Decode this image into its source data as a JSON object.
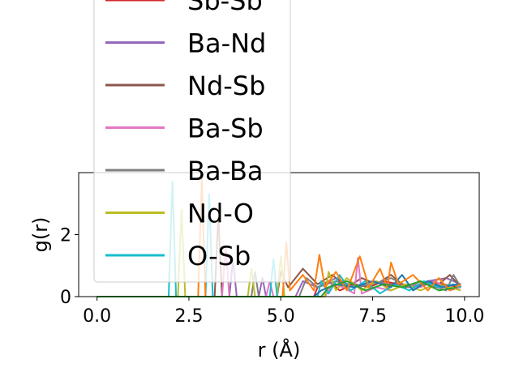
{
  "chart_data": {
    "type": "line",
    "title": "",
    "xlabel": "r (Å)",
    "ylabel": "g(r)",
    "xlim": [
      -0.5,
      10.4
    ],
    "ylim": [
      0,
      4.0
    ],
    "xticks": [
      {
        "value": 0.0,
        "label": "0.0"
      },
      {
        "value": 2.5,
        "label": "2.5"
      },
      {
        "value": 5.0,
        "label": "5.0"
      },
      {
        "value": 7.5,
        "label": "7.5"
      },
      {
        "value": 10.0,
        "label": "10.0"
      }
    ],
    "yticks": [
      {
        "value": 0,
        "label": "0"
      },
      {
        "value": 2,
        "label": "2"
      }
    ],
    "grid": false,
    "legend_position": "upper-left, overflowing above plot",
    "series": [
      {
        "name": "Sb-Sb",
        "color": "#d62728",
        "points": [
          [
            0,
            0
          ],
          [
            5.9,
            0
          ],
          [
            6.0,
            0.3
          ],
          [
            6.3,
            0.5
          ],
          [
            6.6,
            0.2
          ],
          [
            7.0,
            0.4
          ],
          [
            7.4,
            0.3
          ],
          [
            7.8,
            0.5
          ],
          [
            8.2,
            0.4
          ],
          [
            8.6,
            0.3
          ],
          [
            9.0,
            0.5
          ],
          [
            9.4,
            0.4
          ],
          [
            9.9,
            0.3
          ]
        ]
      },
      {
        "name": "Ba-Nd",
        "color": "#9467bd",
        "points": [
          [
            0,
            0
          ],
          [
            3.6,
            0
          ],
          [
            3.7,
            1.2
          ],
          [
            3.8,
            0
          ],
          [
            4.4,
            0
          ],
          [
            4.5,
            0.6
          ],
          [
            4.6,
            0
          ],
          [
            5.4,
            0
          ],
          [
            5.6,
            0.5
          ],
          [
            6.0,
            0.3
          ],
          [
            6.5,
            0.6
          ],
          [
            7.0,
            0.3
          ],
          [
            7.5,
            0.5
          ],
          [
            8.0,
            0.4
          ],
          [
            8.5,
            0.3
          ],
          [
            9.0,
            0.5
          ],
          [
            9.5,
            0.6
          ],
          [
            9.9,
            0.4
          ]
        ]
      },
      {
        "name": "Nd-Sb",
        "color": "#8c564b",
        "points": [
          [
            0,
            0
          ],
          [
            3.2,
            0
          ],
          [
            3.3,
            2.6
          ],
          [
            3.4,
            0
          ],
          [
            4.9,
            0
          ],
          [
            5.0,
            0.8
          ],
          [
            5.2,
            0.3
          ],
          [
            5.6,
            0.9
          ],
          [
            6.0,
            0.4
          ],
          [
            6.4,
            0.7
          ],
          [
            6.8,
            0.3
          ],
          [
            7.2,
            0.6
          ],
          [
            7.6,
            0.4
          ],
          [
            8.0,
            0.7
          ],
          [
            8.4,
            0.3
          ],
          [
            8.8,
            0.5
          ],
          [
            9.2,
            0.3
          ],
          [
            9.6,
            0.7
          ],
          [
            9.9,
            0.3
          ]
        ]
      },
      {
        "name": "Ba-Sb",
        "color": "#e377c2",
        "points": [
          [
            0,
            0
          ],
          [
            3.4,
            0
          ],
          [
            3.5,
            1.6
          ],
          [
            3.6,
            0
          ],
          [
            4.6,
            0
          ],
          [
            4.7,
            0.5
          ],
          [
            4.8,
            0
          ],
          [
            6.2,
            0
          ],
          [
            6.4,
            0.4
          ],
          [
            6.7,
            0.3
          ],
          [
            7.0,
            0.1
          ],
          [
            7.1,
            1.25
          ],
          [
            7.2,
            0.1
          ],
          [
            7.6,
            0.3
          ],
          [
            8.0,
            0.2
          ],
          [
            8.4,
            0.4
          ],
          [
            8.8,
            0.3
          ],
          [
            9.2,
            0.5
          ],
          [
            9.6,
            0.2
          ],
          [
            9.9,
            0.3
          ]
        ]
      },
      {
        "name": "Ba-Ba",
        "color": "#7f7f7f",
        "points": [
          [
            0,
            0
          ],
          [
            4.2,
            0
          ],
          [
            4.3,
            0.8
          ],
          [
            4.4,
            0
          ],
          [
            5.5,
            0
          ],
          [
            5.7,
            0.6
          ],
          [
            6.0,
            0.3
          ],
          [
            6.5,
            0.5
          ],
          [
            7.0,
            0.3
          ],
          [
            7.5,
            0.4
          ],
          [
            8.0,
            0.6
          ],
          [
            8.5,
            0.3
          ],
          [
            9.0,
            0.4
          ],
          [
            9.5,
            0.2
          ],
          [
            9.7,
            0.7
          ],
          [
            9.9,
            0.3
          ]
        ]
      },
      {
        "name": "Nd-O",
        "color": "#bcbd22",
        "points": [
          [
            0,
            0
          ],
          [
            2.2,
            0
          ],
          [
            2.3,
            2.8
          ],
          [
            2.4,
            0
          ],
          [
            4.1,
            0
          ],
          [
            4.2,
            0.9
          ],
          [
            4.3,
            0
          ],
          [
            4.9,
            0
          ],
          [
            5.0,
            1.3
          ],
          [
            5.1,
            0
          ],
          [
            6.2,
            0
          ],
          [
            6.3,
            0.8
          ],
          [
            6.5,
            0.2
          ],
          [
            6.8,
            0.6
          ],
          [
            7.2,
            0.2
          ],
          [
            7.6,
            0.5
          ],
          [
            8.0,
            0.2
          ],
          [
            8.4,
            0.4
          ],
          [
            8.8,
            0.2
          ],
          [
            9.2,
            0.4
          ],
          [
            9.6,
            0.3
          ],
          [
            9.9,
            0.2
          ]
        ]
      },
      {
        "name": "O-Sb",
        "color": "#17becf",
        "points": [
          [
            0,
            0
          ],
          [
            1.95,
            0
          ],
          [
            2.05,
            3.7
          ],
          [
            2.15,
            0
          ],
          [
            2.95,
            0
          ],
          [
            3.05,
            3.3
          ],
          [
            3.15,
            0
          ],
          [
            4.7,
            0
          ],
          [
            4.8,
            1.2
          ],
          [
            4.9,
            0
          ],
          [
            6.0,
            0
          ],
          [
            6.1,
            0.5
          ],
          [
            6.3,
            0.1
          ],
          [
            6.6,
            0.7
          ],
          [
            6.9,
            0.2
          ],
          [
            7.3,
            0.5
          ],
          [
            7.7,
            0.1
          ],
          [
            8.1,
            0.4
          ],
          [
            8.5,
            0.2
          ],
          [
            8.9,
            0.5
          ],
          [
            9.3,
            0.3
          ],
          [
            9.7,
            0.4
          ],
          [
            9.9,
            0.3
          ]
        ]
      },
      {
        "name": "",
        "color": "#1f77b4",
        "points": [
          [
            0,
            0
          ],
          [
            5.9,
            0
          ],
          [
            6.1,
            0.2
          ],
          [
            6.5,
            0.4
          ],
          [
            7.0,
            0.3
          ],
          [
            7.5,
            0.5
          ],
          [
            8.0,
            0.3
          ],
          [
            8.3,
            0.7
          ],
          [
            8.6,
            0.2
          ],
          [
            9.0,
            0.5
          ],
          [
            9.4,
            0.3
          ],
          [
            9.8,
            0.4
          ]
        ]
      },
      {
        "name": "",
        "color": "#ff7f0e",
        "points": [
          [
            0,
            0
          ],
          [
            2.75,
            0
          ],
          [
            2.85,
            3.8
          ],
          [
            2.95,
            0
          ],
          [
            5.05,
            0
          ],
          [
            5.15,
            1.75
          ],
          [
            5.25,
            0.2
          ],
          [
            5.6,
            0.7
          ],
          [
            5.9,
            0.2
          ],
          [
            6.05,
            1.35
          ],
          [
            6.2,
            0.3
          ],
          [
            6.5,
            0.8
          ],
          [
            6.8,
            0.2
          ],
          [
            7.15,
            1.3
          ],
          [
            7.4,
            0.3
          ],
          [
            7.7,
            0.9
          ],
          [
            7.9,
            0.3
          ],
          [
            8.0,
            1.1
          ],
          [
            8.2,
            0.4
          ],
          [
            8.6,
            0.7
          ],
          [
            9.0,
            0.2
          ],
          [
            9.3,
            0.6
          ],
          [
            9.6,
            0.2
          ],
          [
            9.9,
            0.4
          ]
        ]
      },
      {
        "name": "",
        "color": "#2ca02c",
        "points": [
          [
            0,
            0
          ],
          [
            6.1,
            0
          ],
          [
            6.3,
            0.3
          ],
          [
            6.8,
            0.5
          ],
          [
            7.3,
            0.2
          ],
          [
            7.8,
            0.4
          ],
          [
            8.3,
            0.3
          ],
          [
            8.8,
            0.5
          ],
          [
            9.3,
            0.2
          ],
          [
            9.8,
            0.3
          ]
        ]
      }
    ]
  }
}
